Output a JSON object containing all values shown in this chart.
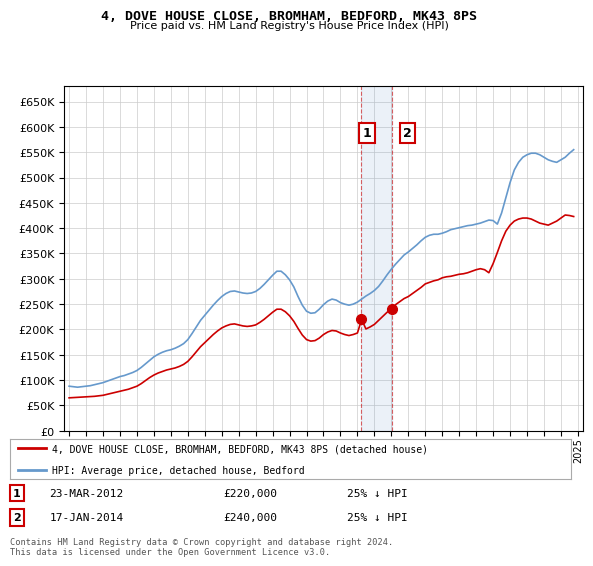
{
  "title": "4, DOVE HOUSE CLOSE, BROMHAM, BEDFORD, MK43 8PS",
  "subtitle": "Price paid vs. HM Land Registry's House Price Index (HPI)",
  "hpi_color": "#6699cc",
  "price_color": "#cc0000",
  "background_color": "#ffffff",
  "grid_color": "#cccccc",
  "ylim": [
    0,
    680000
  ],
  "yticks": [
    0,
    50000,
    100000,
    150000,
    200000,
    250000,
    300000,
    350000,
    400000,
    450000,
    500000,
    550000,
    600000,
    650000
  ],
  "xlim_start": 1994.7,
  "xlim_end": 2025.3,
  "transaction1": {
    "date": "23-MAR-2012",
    "year": 2012.22,
    "price": 220000,
    "label": "1",
    "hpi_pct": "25% ↓ HPI"
  },
  "transaction2": {
    "date": "17-JAN-2014",
    "year": 2014.05,
    "price": 240000,
    "label": "2",
    "hpi_pct": "25% ↓ HPI"
  },
  "legend_label1": "4, DOVE HOUSE CLOSE, BROMHAM, BEDFORD, MK43 8PS (detached house)",
  "legend_label2": "HPI: Average price, detached house, Bedford",
  "footer": "Contains HM Land Registry data © Crown copyright and database right 2024.\nThis data is licensed under the Open Government Licence v3.0.",
  "hpi_data_x": [
    1995.0,
    1995.25,
    1995.5,
    1995.75,
    1996.0,
    1996.25,
    1996.5,
    1996.75,
    1997.0,
    1997.25,
    1997.5,
    1997.75,
    1998.0,
    1998.25,
    1998.5,
    1998.75,
    1999.0,
    1999.25,
    1999.5,
    1999.75,
    2000.0,
    2000.25,
    2000.5,
    2000.75,
    2001.0,
    2001.25,
    2001.5,
    2001.75,
    2002.0,
    2002.25,
    2002.5,
    2002.75,
    2003.0,
    2003.25,
    2003.5,
    2003.75,
    2004.0,
    2004.25,
    2004.5,
    2004.75,
    2005.0,
    2005.25,
    2005.5,
    2005.75,
    2006.0,
    2006.25,
    2006.5,
    2006.75,
    2007.0,
    2007.25,
    2007.5,
    2007.75,
    2008.0,
    2008.25,
    2008.5,
    2008.75,
    2009.0,
    2009.25,
    2009.5,
    2009.75,
    2010.0,
    2010.25,
    2010.5,
    2010.75,
    2011.0,
    2011.25,
    2011.5,
    2011.75,
    2012.0,
    2012.25,
    2012.5,
    2012.75,
    2013.0,
    2013.25,
    2013.5,
    2013.75,
    2014.0,
    2014.25,
    2014.5,
    2014.75,
    2015.0,
    2015.25,
    2015.5,
    2015.75,
    2016.0,
    2016.25,
    2016.5,
    2016.75,
    2017.0,
    2017.25,
    2017.5,
    2017.75,
    2018.0,
    2018.25,
    2018.5,
    2018.75,
    2019.0,
    2019.25,
    2019.5,
    2019.75,
    2020.0,
    2020.25,
    2020.5,
    2020.75,
    2021.0,
    2021.25,
    2021.5,
    2021.75,
    2022.0,
    2022.25,
    2022.5,
    2022.75,
    2023.0,
    2023.25,
    2023.5,
    2023.75,
    2024.0,
    2024.25,
    2024.5,
    2024.75
  ],
  "hpi_data_y": [
    88000,
    87000,
    86000,
    87000,
    88000,
    89000,
    91000,
    93000,
    95000,
    98000,
    101000,
    104000,
    107000,
    109000,
    112000,
    115000,
    119000,
    125000,
    132000,
    139000,
    146000,
    151000,
    155000,
    158000,
    160000,
    163000,
    167000,
    172000,
    180000,
    192000,
    205000,
    218000,
    228000,
    238000,
    248000,
    257000,
    265000,
    271000,
    275000,
    276000,
    274000,
    272000,
    271000,
    272000,
    275000,
    281000,
    289000,
    298000,
    307000,
    315000,
    315000,
    308000,
    298000,
    284000,
    265000,
    248000,
    236000,
    232000,
    233000,
    240000,
    249000,
    256000,
    260000,
    258000,
    253000,
    250000,
    248000,
    250000,
    254000,
    260000,
    266000,
    271000,
    277000,
    285000,
    296000,
    308000,
    319000,
    329000,
    338000,
    347000,
    353000,
    360000,
    367000,
    375000,
    382000,
    386000,
    388000,
    388000,
    390000,
    393000,
    397000,
    399000,
    401000,
    403000,
    405000,
    406000,
    408000,
    410000,
    413000,
    416000,
    415000,
    408000,
    430000,
    460000,
    490000,
    515000,
    530000,
    540000,
    545000,
    548000,
    548000,
    545000,
    540000,
    535000,
    532000,
    530000,
    535000,
    540000,
    548000,
    555000
  ],
  "price_data_x": [
    1995.0,
    1995.25,
    1995.5,
    1995.75,
    1996.0,
    1996.25,
    1996.5,
    1996.75,
    1997.0,
    1997.25,
    1997.5,
    1997.75,
    1998.0,
    1998.25,
    1998.5,
    1998.75,
    1999.0,
    1999.25,
    1999.5,
    1999.75,
    2000.0,
    2000.25,
    2000.5,
    2000.75,
    2001.0,
    2001.25,
    2001.5,
    2001.75,
    2002.0,
    2002.25,
    2002.5,
    2002.75,
    2003.0,
    2003.25,
    2003.5,
    2003.75,
    2004.0,
    2004.25,
    2004.5,
    2004.75,
    2005.0,
    2005.25,
    2005.5,
    2005.75,
    2006.0,
    2006.25,
    2006.5,
    2006.75,
    2007.0,
    2007.25,
    2007.5,
    2007.75,
    2008.0,
    2008.25,
    2008.5,
    2008.75,
    2009.0,
    2009.25,
    2009.5,
    2009.75,
    2010.0,
    2010.25,
    2010.5,
    2010.75,
    2011.0,
    2011.25,
    2011.5,
    2011.75,
    2012.0,
    2012.25,
    2012.5,
    2012.75,
    2013.0,
    2013.25,
    2013.5,
    2013.75,
    2014.0,
    2014.25,
    2014.5,
    2014.75,
    2015.0,
    2015.25,
    2015.5,
    2015.75,
    2016.0,
    2016.25,
    2016.5,
    2016.75,
    2017.0,
    2017.25,
    2017.5,
    2017.75,
    2018.0,
    2018.25,
    2018.5,
    2018.75,
    2019.0,
    2019.25,
    2019.5,
    2019.75,
    2020.0,
    2020.25,
    2020.5,
    2020.75,
    2021.0,
    2021.25,
    2021.5,
    2021.75,
    2022.0,
    2022.25,
    2022.5,
    2022.75,
    2023.0,
    2023.25,
    2023.5,
    2023.75,
    2024.0,
    2024.25,
    2024.5,
    2024.75
  ],
  "price_data_y": [
    65000,
    65500,
    66000,
    66500,
    67000,
    67500,
    68000,
    69000,
    70000,
    72000,
    74000,
    76000,
    78000,
    80000,
    82000,
    85000,
    88000,
    93000,
    99000,
    105000,
    110000,
    114000,
    117000,
    120000,
    122000,
    124000,
    127000,
    131000,
    137000,
    146000,
    156000,
    166000,
    174000,
    182000,
    190000,
    197000,
    203000,
    207000,
    210000,
    211000,
    209000,
    207000,
    206000,
    207000,
    209000,
    214000,
    220000,
    227000,
    234000,
    240000,
    240000,
    235000,
    227000,
    216000,
    202000,
    189000,
    180000,
    177000,
    178000,
    183000,
    190000,
    195000,
    198000,
    197000,
    193000,
    190000,
    188000,
    190000,
    193000,
    220000,
    201000,
    205000,
    210000,
    218000,
    226000,
    234000,
    240000,
    249000,
    255000,
    261000,
    265000,
    271000,
    277000,
    283000,
    290000,
    293000,
    296000,
    298000,
    302000,
    304000,
    305000,
    307000,
    309000,
    310000,
    312000,
    315000,
    318000,
    320000,
    318000,
    312000,
    330000,
    352000,
    375000,
    394000,
    406000,
    414000,
    418000,
    420000,
    420000,
    418000,
    414000,
    410000,
    408000,
    406000,
    410000,
    414000,
    420000,
    426000,
    425000,
    423000
  ]
}
